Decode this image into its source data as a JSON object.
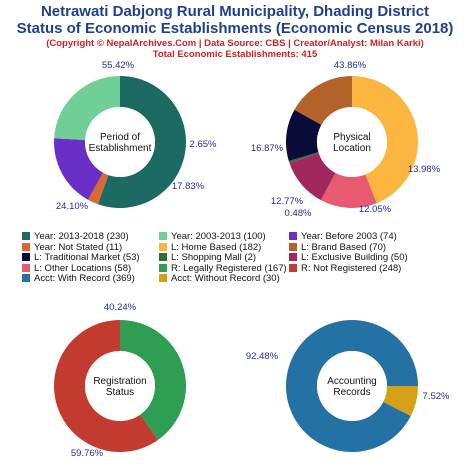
{
  "header": {
    "title_line1": "Netrawati Dabjong Rural Municipality, Dhading District",
    "title_line2": "Status of Economic Establishments (Economic Census 2018)",
    "credit": "(Copyright © NepalArchives.Com | Data Source: CBS | Creator/Analyst: Milan Karki)",
    "total": "Total Economic Establishments: 415"
  },
  "legend": [
    {
      "label": "Year: 2013-2018 (230)",
      "color": "#1b6b63"
    },
    {
      "label": "Year: 2003-2013 (100)",
      "color": "#6fcf97"
    },
    {
      "label": "Year: Before 2003 (74)",
      "color": "#6a2fc7"
    },
    {
      "label": "Year: Not Stated (11)",
      "color": "#d8692f"
    },
    {
      "label": "L: Home Based (182)",
      "color": "#fbb642"
    },
    {
      "label": "L: Brand Based (70)",
      "color": "#b5612a"
    },
    {
      "label": "L: Traditional Market (53)",
      "color": "#0b0b3b"
    },
    {
      "label": "L: Shopping Mall (2)",
      "color": "#2e6e36"
    },
    {
      "label": "L: Exclusive Building (50)",
      "color": "#a0285e"
    },
    {
      "label": "L: Other Locations (58)",
      "color": "#e85a70"
    },
    {
      "label": "R: Legally Registered (167)",
      "color": "#2e9e52"
    },
    {
      "label": "R: Not Registered (248)",
      "color": "#c23b2e"
    },
    {
      "label": "Acct: With Record (369)",
      "color": "#2471a3"
    },
    {
      "label": "Acct: Without Record (30)",
      "color": "#d4a017"
    }
  ],
  "chart_data": [
    {
      "type": "pie",
      "title": "Period of Establishment",
      "center_lines": [
        "Period of",
        "Establishment"
      ],
      "slices": [
        {
          "name": "Year: 2013-2018",
          "value": 230,
          "percent_label": "55.42%",
          "color": "#1b6b63"
        },
        {
          "name": "Year: Not Stated",
          "value": 11,
          "percent_label": "2.65%",
          "color": "#d8692f"
        },
        {
          "name": "Year: Before 2003",
          "value": 74,
          "percent_label": "17.83%",
          "color": "#6a2fc7"
        },
        {
          "name": "Year: 2003-2013",
          "value": 100,
          "percent_label": "24.10%",
          "color": "#6fcf97"
        }
      ]
    },
    {
      "type": "pie",
      "title": "Physical Location",
      "center_lines": [
        "Physical",
        "Location"
      ],
      "slices": [
        {
          "name": "L: Home Based",
          "value": 182,
          "percent_label": "43.86%",
          "color": "#fbb642"
        },
        {
          "name": "L: Other Locations",
          "value": 58,
          "percent_label": "13.98%",
          "color": "#e85a70"
        },
        {
          "name": "L: Exclusive Building",
          "value": 50,
          "percent_label": "12.05%",
          "color": "#a0285e"
        },
        {
          "name": "L: Shopping Mall",
          "value": 2,
          "percent_label": "0.48%",
          "color": "#2e6e36"
        },
        {
          "name": "L: Traditional Market",
          "value": 53,
          "percent_label": "12.77%",
          "color": "#0b0b3b"
        },
        {
          "name": "L: Brand Based",
          "value": 70,
          "percent_label": "16.87%",
          "color": "#b5612a"
        }
      ]
    },
    {
      "type": "pie",
      "title": "Registration Status",
      "center_lines": [
        "Registration",
        "Status"
      ],
      "slices": [
        {
          "name": "R: Legally Registered",
          "value": 167,
          "percent_label": "40.24%",
          "color": "#2e9e52"
        },
        {
          "name": "R: Not Registered",
          "value": 248,
          "percent_label": "59.76%",
          "color": "#c23b2e"
        }
      ]
    },
    {
      "type": "pie",
      "title": "Accounting Records",
      "center_lines": [
        "Accounting",
        "Records"
      ],
      "slices": [
        {
          "name": "Acct: Without Record",
          "value": 30,
          "percent_label": "7.52%",
          "color": "#d4a017"
        },
        {
          "name": "Acct: With Record",
          "value": 369,
          "percent_label": "92.48%",
          "color": "#2471a3"
        }
      ]
    }
  ]
}
